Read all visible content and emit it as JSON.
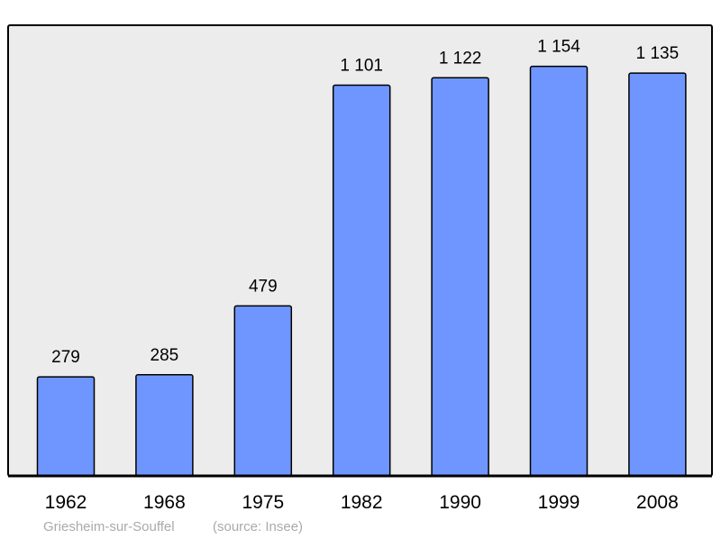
{
  "chart_data": {
    "type": "bar",
    "categories": [
      "1962",
      "1968",
      "1975",
      "1982",
      "1990",
      "1999",
      "2008"
    ],
    "values": [
      279,
      285,
      479,
      1101,
      1122,
      1154,
      1135
    ],
    "value_labels": [
      "279",
      "285",
      "479",
      "1 101",
      "1 122",
      "1 154",
      "1 135"
    ],
    "title": "",
    "xlabel": "",
    "ylabel": "",
    "ylim": [
      0,
      1270
    ],
    "grid": false,
    "footer": {
      "place": "Griesheim-sur-Souffel",
      "source": "(source: Insee)"
    },
    "colors": {
      "bar": "#6f96ff",
      "plot_bg": "#ececec",
      "frame": "#000000",
      "footer": "#aaaaaa"
    }
  }
}
